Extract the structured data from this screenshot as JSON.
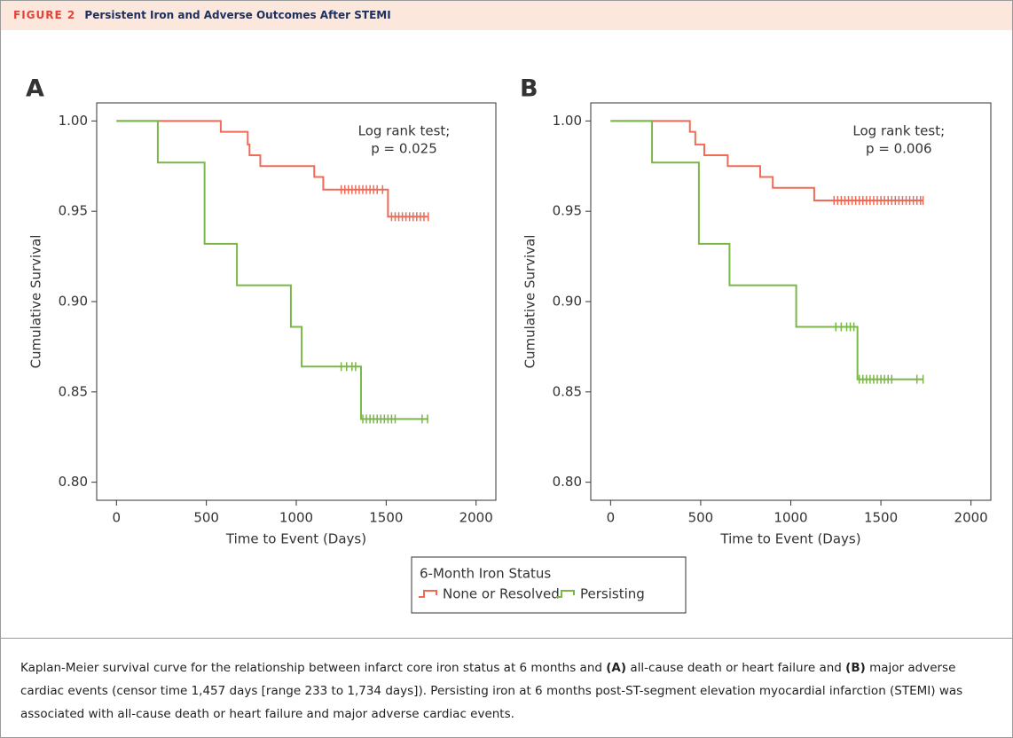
{
  "header": {
    "label": "FIGURE 2",
    "title": "Persistent Iron and Adverse Outcomes After STEMI"
  },
  "legend": {
    "title": "6-Month Iron Status"
  },
  "chart_data": [
    {
      "type": "step",
      "panel": "A",
      "xlabel": "Time to Event (Days)",
      "ylabel": "Cumulative Survival",
      "annotation": [
        "Log rank test;",
        "p = 0.025"
      ],
      "xlim": [
        -110,
        2110
      ],
      "ylim": [
        0.79,
        1.01
      ],
      "xticks": [
        0,
        500,
        1000,
        1500,
        2000
      ],
      "yticks": [
        {
          "value": 0.8,
          "label": "0.80"
        },
        0.85,
        {
          "value": 0.9,
          "label": "0.90"
        },
        0.95,
        {
          "value": 1,
          "label": "1.00"
        }
      ],
      "series": [
        {
          "name": "None or Resolved",
          "color": "#ef6b57",
          "x": [
            0,
            580,
            730,
            740,
            800,
            1100,
            1150,
            1510,
            1734
          ],
          "values": [
            1,
            0.994,
            0.987,
            0.981,
            0.975,
            0.969,
            0.962,
            0.947,
            0.947
          ],
          "censored_x": [
            1250,
            1270,
            1290,
            1310,
            1330,
            1350,
            1370,
            1390,
            1410,
            1430,
            1450,
            1480,
            1530,
            1550,
            1570,
            1590,
            1610,
            1630,
            1650,
            1670,
            1690,
            1710,
            1734
          ]
        },
        {
          "name": "Persisting",
          "color": "#7ab648",
          "x": [
            0,
            230,
            490,
            670,
            970,
            1030,
            1360,
            1734
          ],
          "values": [
            1,
            0.977,
            0.932,
            0.909,
            0.886,
            0.864,
            0.835,
            0.835
          ],
          "censored_x": [
            1250,
            1280,
            1310,
            1330,
            1370,
            1390,
            1410,
            1430,
            1450,
            1470,
            1490,
            1510,
            1530,
            1550,
            1700,
            1730
          ]
        }
      ]
    },
    {
      "type": "step",
      "panel": "B",
      "xlabel": "Time to Event (Days)",
      "ylabel": "Cumulative Survival",
      "annotation": [
        "Log rank test;",
        "p = 0.006"
      ],
      "xlim": [
        -110,
        2110
      ],
      "ylim": [
        0.79,
        1.01
      ],
      "xticks": [
        0,
        500,
        1000,
        1500,
        2000
      ],
      "yticks": [
        {
          "value": 0.8,
          "label": "0.80"
        },
        0.85,
        {
          "value": 0.9,
          "label": "0.90"
        },
        0.95,
        {
          "value": 1,
          "label": "1.00"
        }
      ],
      "series": [
        {
          "name": "None or Resolved",
          "color": "#ef6b57",
          "x": [
            0,
            440,
            470,
            520,
            650,
            830,
            900,
            1130,
            1734
          ],
          "values": [
            1,
            0.994,
            0.987,
            0.981,
            0.975,
            0.969,
            0.963,
            0.956,
            0.956
          ],
          "censored_x": [
            1240,
            1260,
            1280,
            1300,
            1320,
            1340,
            1360,
            1380,
            1400,
            1420,
            1440,
            1460,
            1480,
            1500,
            1520,
            1540,
            1560,
            1580,
            1600,
            1620,
            1640,
            1660,
            1680,
            1700,
            1720,
            1734
          ]
        },
        {
          "name": "Persisting",
          "color": "#7ab648",
          "x": [
            0,
            230,
            490,
            660,
            1030,
            1370,
            1734
          ],
          "values": [
            1,
            0.977,
            0.932,
            0.909,
            0.886,
            0.857,
            0.857
          ],
          "censored_x": [
            1250,
            1280,
            1310,
            1330,
            1350,
            1380,
            1400,
            1420,
            1440,
            1460,
            1480,
            1500,
            1520,
            1540,
            1560,
            1700,
            1734
          ]
        }
      ]
    }
  ],
  "caption": [
    "Kaplan-Meier survival curve for the relationship between infarct core iron status at 6 months and ",
    "(A)",
    " all-cause death or heart failure and ",
    "(B)",
    " major adverse cardiac events (censor time 1,457 days [range 233 to 1,734 days]). Persisting iron at 6 months post-ST-segment elevation myocardial infarction (STEMI) was associated with all-cause death or heart failure and major adverse cardiac events."
  ]
}
